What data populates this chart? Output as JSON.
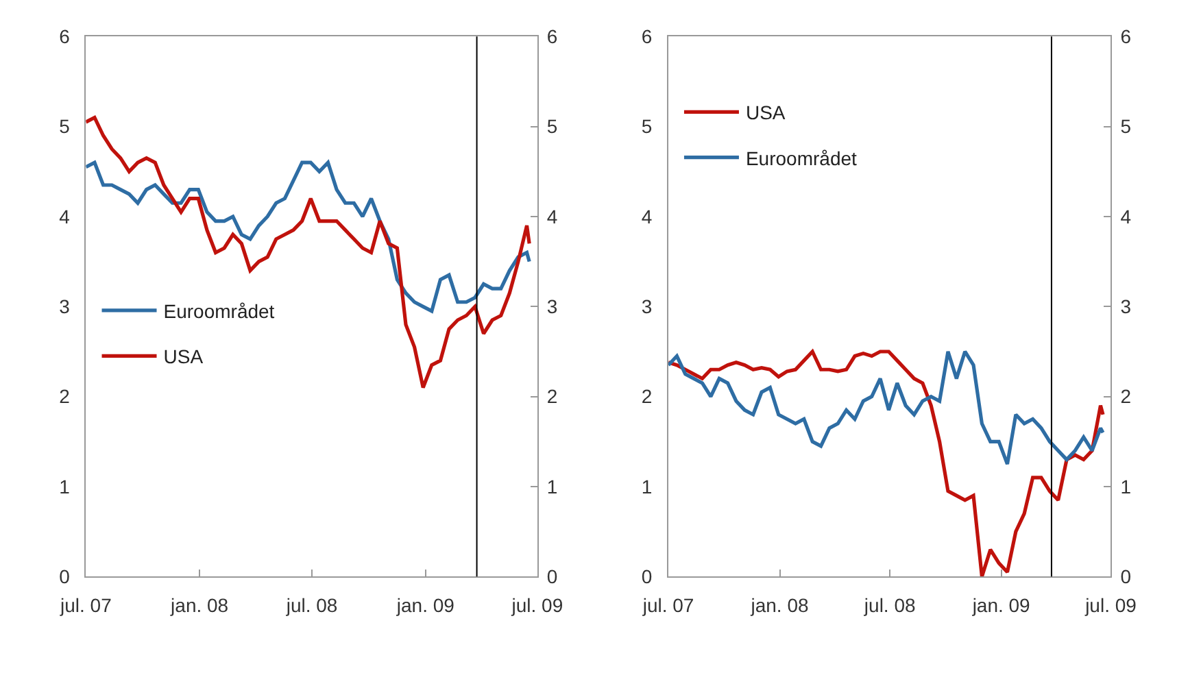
{
  "chart_data": [
    {
      "type": "line",
      "legend": "left",
      "xlim": [
        "2007-07-01",
        "2009-07-01"
      ],
      "xticks": [
        {
          "value": "2007-07-01",
          "label": "jul. 07"
        },
        {
          "value": "2008-01-01",
          "label": "jan. 08"
        },
        {
          "value": "2008-07-01",
          "label": "jul. 08"
        },
        {
          "value": "2009-01-01",
          "label": "jan. 09"
        },
        {
          "value": "2009-07-01",
          "label": "jul. 09"
        }
      ],
      "ylim": [
        0,
        6
      ],
      "yticks": [
        0,
        1,
        2,
        3,
        4,
        5,
        6
      ],
      "y2lim": [
        0,
        6
      ],
      "y2ticks": [
        0,
        1,
        2,
        3,
        4,
        5,
        6
      ],
      "ref_lines": [
        {
          "axis": "x",
          "value": "2009-03-25",
          "color": "#000000"
        }
      ],
      "x": [
        "2007-07-01",
        "2007-07-15",
        "2007-07-29",
        "2007-08-12",
        "2007-08-26",
        "2007-09-09",
        "2007-09-23",
        "2007-10-07",
        "2007-10-21",
        "2007-11-04",
        "2007-11-18",
        "2007-12-02",
        "2007-12-16",
        "2007-12-30",
        "2008-01-13",
        "2008-01-27",
        "2008-02-10",
        "2008-02-24",
        "2008-03-09",
        "2008-03-23",
        "2008-04-06",
        "2008-04-20",
        "2008-05-04",
        "2008-05-18",
        "2008-06-01",
        "2008-06-15",
        "2008-06-29",
        "2008-07-13",
        "2008-07-27",
        "2008-08-10",
        "2008-08-24",
        "2008-09-07",
        "2008-09-21",
        "2008-10-05",
        "2008-10-19",
        "2008-11-02",
        "2008-11-16",
        "2008-11-30",
        "2008-12-14",
        "2008-12-28",
        "2009-01-11",
        "2009-01-25",
        "2009-02-08",
        "2009-02-22",
        "2009-03-08",
        "2009-03-22",
        "2009-04-05",
        "2009-04-19",
        "2009-05-03",
        "2009-05-17",
        "2009-05-31",
        "2009-06-14",
        "2009-06-18"
      ],
      "series": [
        {
          "name": "Euroområdet",
          "color": "#2e6da4",
          "values": [
            4.55,
            4.6,
            4.35,
            4.35,
            4.3,
            4.25,
            4.15,
            4.3,
            4.35,
            4.25,
            4.15,
            4.15,
            4.3,
            4.3,
            4.05,
            3.95,
            3.95,
            4.0,
            3.8,
            3.75,
            3.9,
            4.0,
            4.15,
            4.2,
            4.4,
            4.6,
            4.6,
            4.5,
            4.6,
            4.3,
            4.15,
            4.15,
            4.0,
            4.2,
            3.95,
            3.75,
            3.3,
            3.15,
            3.05,
            3.0,
            2.95,
            3.3,
            3.35,
            3.05,
            3.05,
            3.1,
            3.25,
            3.2,
            3.2,
            3.4,
            3.55,
            3.6,
            3.5
          ]
        },
        {
          "name": "USA",
          "color": "#c0120c",
          "values": [
            5.05,
            5.1,
            4.9,
            4.75,
            4.65,
            4.5,
            4.6,
            4.65,
            4.6,
            4.35,
            4.2,
            4.05,
            4.2,
            4.2,
            3.85,
            3.6,
            3.65,
            3.8,
            3.7,
            3.4,
            3.5,
            3.55,
            3.75,
            3.8,
            3.85,
            3.95,
            4.2,
            3.95,
            3.95,
            3.95,
            3.85,
            3.75,
            3.65,
            3.6,
            3.95,
            3.7,
            3.65,
            2.8,
            2.55,
            2.1,
            2.35,
            2.4,
            2.75,
            2.85,
            2.9,
            3.0,
            2.7,
            2.85,
            2.9,
            3.15,
            3.5,
            3.9,
            3.7
          ]
        }
      ]
    },
    {
      "type": "line",
      "legend": "top left",
      "xlim": [
        "2007-07-01",
        "2009-07-01"
      ],
      "xticks": [
        {
          "value": "2007-07-01",
          "label": "jul. 07"
        },
        {
          "value": "2008-01-01",
          "label": "jan. 08"
        },
        {
          "value": "2008-07-01",
          "label": "jul. 08"
        },
        {
          "value": "2009-01-01",
          "label": "jan. 09"
        },
        {
          "value": "2009-07-01",
          "label": "jul. 09"
        }
      ],
      "ylim": [
        0,
        6
      ],
      "yticks": [
        0,
        1,
        2,
        3,
        4,
        5,
        6
      ],
      "y2lim": [
        0,
        6
      ],
      "y2ticks": [
        0,
        1,
        2,
        3,
        4,
        5,
        6
      ],
      "ref_lines": [
        {
          "axis": "x",
          "value": "2009-03-25",
          "color": "#000000"
        }
      ],
      "x": [
        "2007-07-01",
        "2007-07-15",
        "2007-07-29",
        "2007-08-12",
        "2007-08-26",
        "2007-09-09",
        "2007-09-23",
        "2007-10-07",
        "2007-10-21",
        "2007-11-04",
        "2007-11-18",
        "2007-12-02",
        "2007-12-16",
        "2007-12-30",
        "2008-01-13",
        "2008-01-27",
        "2008-02-10",
        "2008-02-24",
        "2008-03-09",
        "2008-03-23",
        "2008-04-06",
        "2008-04-20",
        "2008-05-04",
        "2008-05-18",
        "2008-06-01",
        "2008-06-15",
        "2008-06-29",
        "2008-07-13",
        "2008-07-27",
        "2008-08-10",
        "2008-08-24",
        "2008-09-07",
        "2008-09-21",
        "2008-10-05",
        "2008-10-19",
        "2008-11-02",
        "2008-11-16",
        "2008-11-30",
        "2008-12-14",
        "2008-12-28",
        "2009-01-11",
        "2009-01-25",
        "2009-02-08",
        "2009-02-22",
        "2009-03-08",
        "2009-03-22",
        "2009-04-05",
        "2009-04-19",
        "2009-05-03",
        "2009-05-17",
        "2009-05-31",
        "2009-06-14",
        "2009-06-18"
      ],
      "series": [
        {
          "name": "USA",
          "color": "#c0120c",
          "values": [
            2.38,
            2.35,
            2.3,
            2.25,
            2.2,
            2.3,
            2.3,
            2.35,
            2.38,
            2.35,
            2.3,
            2.32,
            2.3,
            2.22,
            2.28,
            2.3,
            2.4,
            2.5,
            2.3,
            2.3,
            2.28,
            2.3,
            2.45,
            2.48,
            2.45,
            2.5,
            2.5,
            2.4,
            2.3,
            2.2,
            2.15,
            1.9,
            1.5,
            0.95,
            0.9,
            0.85,
            0.9,
            0.0,
            0.3,
            0.15,
            0.05,
            0.5,
            0.7,
            1.1,
            1.1,
            0.95,
            0.85,
            1.3,
            1.35,
            1.3,
            1.4,
            1.9,
            1.8
          ]
        },
        {
          "name": "Euroområdet",
          "color": "#2e6da4",
          "values": [
            2.35,
            2.45,
            2.25,
            2.2,
            2.15,
            2.0,
            2.2,
            2.15,
            1.95,
            1.85,
            1.8,
            2.05,
            2.1,
            1.8,
            1.75,
            1.7,
            1.75,
            1.5,
            1.45,
            1.65,
            1.7,
            1.85,
            1.75,
            1.95,
            2.0,
            2.2,
            1.85,
            2.15,
            1.9,
            1.8,
            1.95,
            2.0,
            1.95,
            2.5,
            2.2,
            2.5,
            2.35,
            1.7,
            1.5,
            1.5,
            1.25,
            1.8,
            1.7,
            1.75,
            1.65,
            1.5,
            1.4,
            1.3,
            1.4,
            1.55,
            1.4,
            1.65,
            1.6
          ]
        }
      ]
    }
  ]
}
